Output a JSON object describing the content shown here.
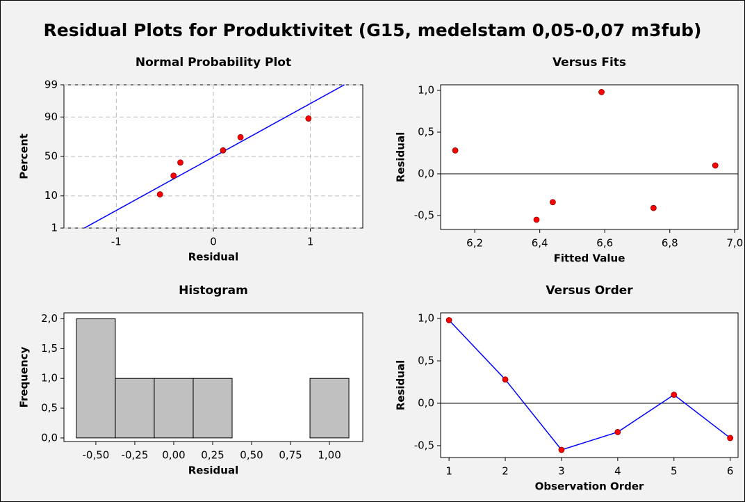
{
  "title": "Residual Plots for Produktivitet (G15, medelstam 0,05-0,07 m3fub)",
  "chart_data": [
    {
      "type": "probability",
      "title": "Normal Probability Plot",
      "x_label": "Residual",
      "y_label": "Percent",
      "x": [
        -0.55,
        -0.41,
        -0.34,
        0.1,
        0.28,
        0.98
      ],
      "values": [
        10.9,
        26.6,
        42.2,
        57.8,
        73.4,
        89.1
      ],
      "color": "#ff0000",
      "line_color": "#0000ff",
      "fit_line": {
        "x": [
          -1.33,
          1.35
        ],
        "y": [
          1,
          99
        ]
      },
      "xlim": [
        -1.54,
        1.54
      ],
      "xticks": [
        -1,
        0,
        1
      ],
      "ylim": [
        1,
        99
      ],
      "yticks": [
        1,
        10,
        50,
        90,
        99
      ],
      "yscale": "probability",
      "grid": true
    },
    {
      "type": "scatter",
      "title": "Versus Fits",
      "x_label": "Fitted Value",
      "y_label": "Residual",
      "x": [
        6.59,
        6.14,
        6.39,
        6.44,
        6.94,
        6.75
      ],
      "values": [
        0.98,
        0.28,
        -0.55,
        -0.34,
        0.1,
        -0.41
      ],
      "color": "#ff0000",
      "reference_line": 0,
      "xlim": [
        6.095,
        7.01
      ],
      "xticks": [
        {
          "value": 6.2,
          "label": "6,2"
        },
        {
          "value": 6.4,
          "label": "6,4"
        },
        {
          "value": 6.6,
          "label": "6,6"
        },
        {
          "value": 6.8,
          "label": "6,8"
        },
        {
          "value": 7.0,
          "label": "7,0"
        }
      ],
      "ylim": [
        -0.667,
        1.067
      ],
      "yticks": [
        {
          "value": -0.5,
          "label": "-0,5"
        },
        {
          "value": 0.0,
          "label": "0,0"
        },
        {
          "value": 0.5,
          "label": "0,5"
        },
        {
          "value": 1.0,
          "label": "1,0"
        }
      ],
      "grid": false
    },
    {
      "type": "histogram",
      "title": "Histogram",
      "x_label": "Residual",
      "y_label": "Frequency",
      "bins": [
        -0.625,
        -0.375,
        -0.125,
        0.125,
        0.375,
        0.625,
        0.875,
        1.125
      ],
      "values": [
        2,
        1,
        1,
        1,
        0,
        0,
        1
      ],
      "color": "#c0c0c0",
      "xlim": [
        -0.705,
        1.214
      ],
      "xticks": [
        {
          "value": -0.5,
          "label": "-0,50"
        },
        {
          "value": -0.25,
          "label": "-0,25"
        },
        {
          "value": 0,
          "label": "0,00"
        },
        {
          "value": 0.25,
          "label": "0,25"
        },
        {
          "value": 0.5,
          "label": "0,50"
        },
        {
          "value": 0.75,
          "label": "0,75"
        },
        {
          "value": 1.0,
          "label": "1,00"
        }
      ],
      "ylim": [
        -0.06,
        2.1
      ],
      "yticks": [
        {
          "value": 0,
          "label": "0,0"
        },
        {
          "value": 0.5,
          "label": "0,5"
        },
        {
          "value": 1.0,
          "label": "1,0"
        },
        {
          "value": 1.5,
          "label": "1,5"
        },
        {
          "value": 2.0,
          "label": "2,0"
        }
      ],
      "grid": false
    },
    {
      "type": "line",
      "title": "Versus Order",
      "x_label": "Observation Order",
      "y_label": "Residual",
      "x": [
        1,
        2,
        3,
        4,
        5,
        6
      ],
      "values": [
        0.98,
        0.28,
        -0.55,
        -0.34,
        0.1,
        -0.41
      ],
      "color": "#ff0000",
      "line_color": "#0000ff",
      "reference_line": 0,
      "xlim": [
        0.85,
        6.14
      ],
      "xticks": [
        1,
        2,
        3,
        4,
        5,
        6
      ],
      "ylim": [
        -0.64,
        1.066
      ],
      "yticks": [
        {
          "value": -0.5,
          "label": "-0,5"
        },
        {
          "value": 0.0,
          "label": "0,0"
        },
        {
          "value": 0.5,
          "label": "0,5"
        },
        {
          "value": 1.0,
          "label": "1,0"
        }
      ],
      "grid": false
    }
  ]
}
